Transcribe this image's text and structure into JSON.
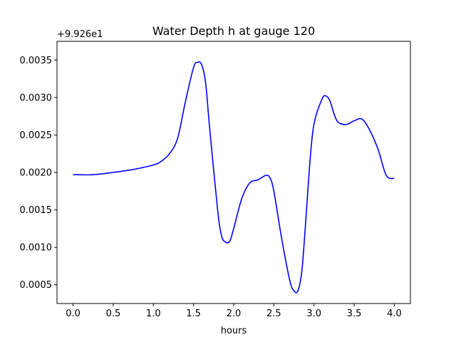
{
  "chart_data": {
    "type": "line",
    "title": "Water Depth h at gauge 120",
    "xlabel": "hours",
    "ylabel": "",
    "y_offset_label": "+9.926e1",
    "xlim": [
      -0.2,
      4.2
    ],
    "ylim": [
      0.00025,
      0.00375
    ],
    "xticks": [
      0.0,
      0.5,
      1.0,
      1.5,
      2.0,
      2.5,
      3.0,
      3.5,
      4.0
    ],
    "xtick_labels": [
      "0.0",
      "0.5",
      "1.0",
      "1.5",
      "2.0",
      "2.5",
      "3.0",
      "3.5",
      "4.0"
    ],
    "yticks": [
      0.0005,
      0.001,
      0.0015,
      0.002,
      0.0025,
      0.003,
      0.0035
    ],
    "ytick_labels": [
      "0.0005",
      "0.0010",
      "0.0015",
      "0.0020",
      "0.0025",
      "0.0030",
      "0.0035"
    ],
    "grid": false,
    "series": [
      {
        "color": "#0000ff",
        "x": [
          0.0,
          0.25,
          0.5,
          0.75,
          1.0,
          1.1,
          1.2,
          1.3,
          1.4,
          1.5,
          1.55,
          1.6,
          1.65,
          1.7,
          1.8,
          1.85,
          1.9,
          1.95,
          2.0,
          2.1,
          2.2,
          2.3,
          2.4,
          2.45,
          2.5,
          2.6,
          2.7,
          2.75,
          2.8,
          2.85,
          2.9,
          2.95,
          3.0,
          3.1,
          3.15,
          3.2,
          3.25,
          3.3,
          3.4,
          3.5,
          3.6,
          3.7,
          3.8,
          3.9,
          4.0
        ],
        "y": [
          0.00197,
          0.00197,
          0.002,
          0.00204,
          0.0021,
          0.00215,
          0.00225,
          0.00245,
          0.00295,
          0.0034,
          0.00347,
          0.00344,
          0.0032,
          0.0026,
          0.0015,
          0.00115,
          0.00107,
          0.00108,
          0.00125,
          0.00165,
          0.00186,
          0.0019,
          0.00196,
          0.00193,
          0.00175,
          0.0011,
          0.00055,
          0.00042,
          0.00042,
          0.0007,
          0.0014,
          0.00215,
          0.00265,
          0.00298,
          0.00302,
          0.00295,
          0.00278,
          0.00267,
          0.00264,
          0.00269,
          0.00271,
          0.00255,
          0.0023,
          0.00196,
          0.00192
        ]
      }
    ]
  }
}
